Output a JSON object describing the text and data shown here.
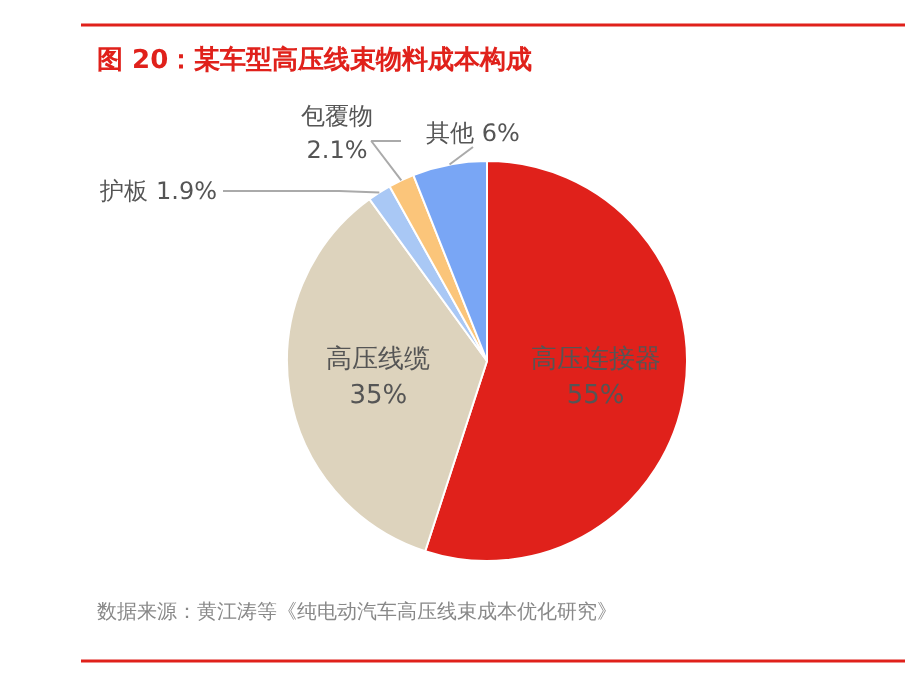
{
  "chart_data": {
    "type": "pie",
    "title": "图 20：某车型高压线束物料成本构成",
    "categories": [
      "高压连接器",
      "高压线缆",
      "护板",
      "包覆物",
      "其他"
    ],
    "values": [
      55,
      35,
      1.9,
      2.1,
      6
    ],
    "value_labels": [
      "55%",
      "35%",
      "1.9%",
      "2.1%",
      "6%"
    ],
    "colors": [
      "#e0211b",
      "#ddd3bd",
      "#a9c8f5",
      "#fbc57a",
      "#79a6f5"
    ],
    "annotations": [
      "数据来源：黄江涛等《纯电动汽车高压线束成本优化研究》"
    ]
  }
}
